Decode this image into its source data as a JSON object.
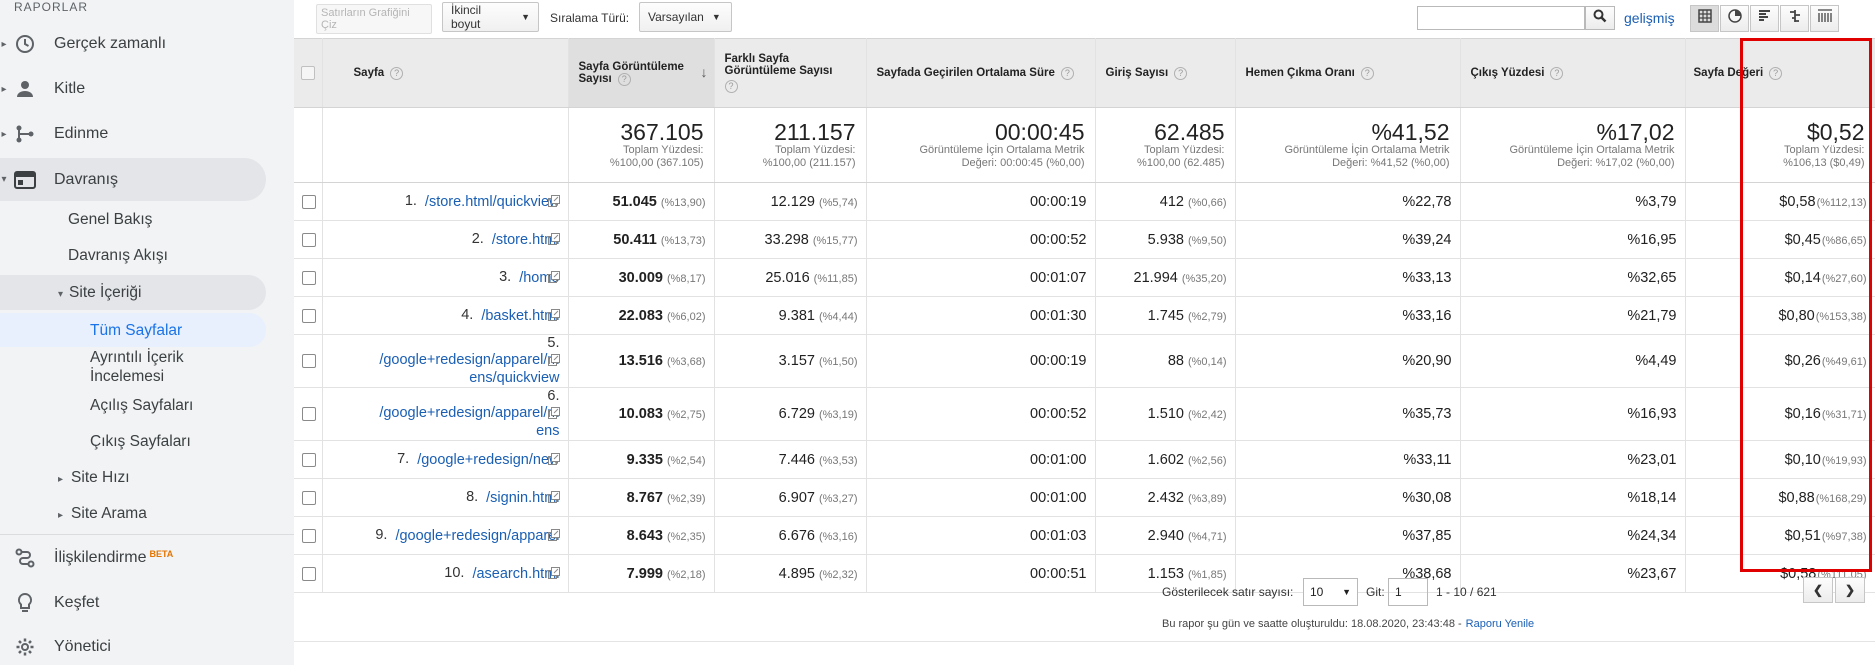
{
  "sidebar": {
    "heading": "RAPORLAR",
    "items": [
      {
        "label": "Gerçek zamanlı"
      },
      {
        "label": "Kitle"
      },
      {
        "label": "Edinme"
      },
      {
        "label": "Davranış"
      }
    ],
    "sub": {
      "genel": "Genel Bakış",
      "akis": "Davranış Akışı",
      "site_icerigi": "Site İçeriği",
      "tum_sayfalar": "Tüm Sayfalar",
      "ayrintili": "Ayrıntılı İçerik İncelemesi",
      "acilis": "Açılış Sayfaları",
      "cikis": "Çıkış Sayfaları",
      "site_hizi": "Site Hızı",
      "site_arama": "Site Arama"
    },
    "bottom": {
      "iliskilendirme": "İlişkilendirme",
      "beta": "BETA",
      "kesfet": "Keşfet",
      "yonetici": "Yönetici"
    }
  },
  "toolbar": {
    "plot_rows": "Satırların Grafiğini Çiz",
    "secondary_dim": "İkincil boyut",
    "sort_type_label": "Sıralama Türü:",
    "sort_type_value": "Varsayılan",
    "search_value": "",
    "advanced": "gelişmiş"
  },
  "table": {
    "headers": {
      "page": "Sayfa",
      "pageviews": "Sayfa Görüntüleme Sayısı",
      "unique": "Farklı Sayfa Görüntüleme Sayısı",
      "avg_time": "Sayfada Geçirilen Ortalama Süre",
      "entrances": "Giriş Sayısı",
      "bounce": "Hemen Çıkma Oranı",
      "exit": "Çıkış Yüzdesi",
      "value": "Sayfa Değeri"
    },
    "totals": {
      "pageviews": {
        "big": "367.105",
        "l1": "Toplam Yüzdesi:",
        "l2": "%100,00 (367.105)"
      },
      "unique": {
        "big": "211.157",
        "l1": "Toplam Yüzdesi:",
        "l2": "%100,00 (211.157)"
      },
      "avg_time": {
        "big": "00:00:45",
        "l1": "Görüntüleme İçin Ortalama Metrik",
        "l2": "Değeri: 00:00:45 (%0,00)"
      },
      "entrances": {
        "big": "62.485",
        "l1": "Toplam Yüzdesi:",
        "l2": "%100,00 (62.485)"
      },
      "bounce": {
        "big": "%41,52",
        "l1": "Görüntüleme İçin Ortalama Metrik",
        "l2": "Değeri: %41,52 (%0,00)"
      },
      "exit": {
        "big": "%17,02",
        "l1": "Görüntüleme İçin Ortalama Metrik",
        "l2": "Değeri: %17,02 (%0,00)"
      },
      "value": {
        "big": "$0,52",
        "l1": "Toplam Yüzdesi:",
        "l2": "%106,13 ($0,49)"
      }
    },
    "rows": [
      {
        "rank": "1.",
        "page": "/store.html/quickview",
        "pv": "51.045",
        "pv_pct": "(%13,90)",
        "upv": "12.129",
        "upv_pct": "(%5,74)",
        "time": "00:00:19",
        "ent": "412",
        "ent_pct": "(%0,66)",
        "bounce": "%22,78",
        "exit": "%3,79",
        "val": "$0,58",
        "val_pct": "(%112,13)"
      },
      {
        "rank": "2.",
        "page": "/store.html",
        "pv": "50.411",
        "pv_pct": "(%13,73)",
        "upv": "33.298",
        "upv_pct": "(%15,77)",
        "time": "00:00:52",
        "ent": "5.938",
        "ent_pct": "(%9,50)",
        "bounce": "%39,24",
        "exit": "%16,95",
        "val": "$0,45",
        "val_pct": "(%86,65)"
      },
      {
        "rank": "3.",
        "page": "/home",
        "pv": "30.009",
        "pv_pct": "(%8,17)",
        "upv": "25.016",
        "upv_pct": "(%11,85)",
        "time": "00:01:07",
        "ent": "21.994",
        "ent_pct": "(%35,20)",
        "bounce": "%33,13",
        "exit": "%32,65",
        "val": "$0,14",
        "val_pct": "(%27,60)"
      },
      {
        "rank": "4.",
        "page": "/basket.html",
        "pv": "22.083",
        "pv_pct": "(%6,02)",
        "upv": "9.381",
        "upv_pct": "(%4,44)",
        "time": "00:01:30",
        "ent": "1.745",
        "ent_pct": "(%2,79)",
        "bounce": "%33,16",
        "exit": "%21,79",
        "val": "$0,80",
        "val_pct": "(%153,38)"
      },
      {
        "rank": "5.",
        "page": "/google+redesign/apparel/mens/quickview",
        "pv": "13.516",
        "pv_pct": "(%3,68)",
        "upv": "3.157",
        "upv_pct": "(%1,50)",
        "time": "00:00:19",
        "ent": "88",
        "ent_pct": "(%0,14)",
        "bounce": "%20,90",
        "exit": "%4,49",
        "val": "$0,26",
        "val_pct": "(%49,61)"
      },
      {
        "rank": "6.",
        "page": "/google+redesign/apparel/mens",
        "pv": "10.083",
        "pv_pct": "(%2,75)",
        "upv": "6.729",
        "upv_pct": "(%3,19)",
        "time": "00:00:52",
        "ent": "1.510",
        "ent_pct": "(%2,42)",
        "bounce": "%35,73",
        "exit": "%16,93",
        "val": "$0,16",
        "val_pct": "(%31,71)"
      },
      {
        "rank": "7.",
        "page": "/google+redesign/new",
        "pv": "9.335",
        "pv_pct": "(%2,54)",
        "upv": "7.446",
        "upv_pct": "(%3,53)",
        "time": "00:01:00",
        "ent": "1.602",
        "ent_pct": "(%2,56)",
        "bounce": "%33,11",
        "exit": "%23,01",
        "val": "$0,10",
        "val_pct": "(%19,93)"
      },
      {
        "rank": "8.",
        "page": "/signin.html",
        "pv": "8.767",
        "pv_pct": "(%2,39)",
        "upv": "6.907",
        "upv_pct": "(%3,27)",
        "time": "00:01:00",
        "ent": "2.432",
        "ent_pct": "(%3,89)",
        "bounce": "%30,08",
        "exit": "%18,14",
        "val": "$0,88",
        "val_pct": "(%168,29)"
      },
      {
        "rank": "9.",
        "page": "/google+redesign/apparel",
        "pv": "8.643",
        "pv_pct": "(%2,35)",
        "upv": "6.676",
        "upv_pct": "(%3,16)",
        "time": "00:01:03",
        "ent": "2.940",
        "ent_pct": "(%4,71)",
        "bounce": "%37,85",
        "exit": "%24,34",
        "val": "$0,51",
        "val_pct": "(%97,38)"
      },
      {
        "rank": "10.",
        "page": "/asearch.html",
        "pv": "7.999",
        "pv_pct": "(%2,18)",
        "upv": "4.895",
        "upv_pct": "(%2,32)",
        "time": "00:00:51",
        "ent": "1.153",
        "ent_pct": "(%1,85)",
        "bounce": "%38,68",
        "exit": "%23,67",
        "val": "$0,58",
        "val_pct": "(%111,05)"
      }
    ]
  },
  "footer": {
    "rows_label": "Gösterilecek satır sayısı:",
    "rows_value": "10",
    "goto_label": "Git:",
    "goto_value": "1",
    "range": "1 - 10 / 621",
    "created": "Bu rapor şu gün ve saatte oluşturuldu: 18.08.2020, 23:43:48 -",
    "refresh": "Raporu Yenile"
  },
  "colors": {
    "link": "#1a5fb4",
    "highlight": "#e00000",
    "sidebar_bg": "#f1f3f4",
    "selected": "#1a73e8"
  }
}
